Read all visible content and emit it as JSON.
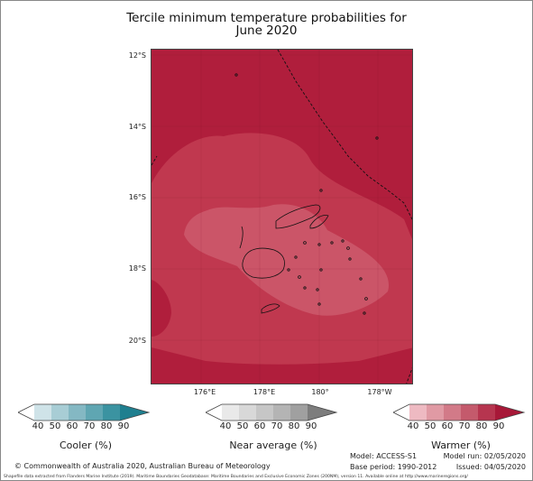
{
  "title": {
    "line1": "Tercile minimum temperature probabilities for",
    "line2": "June 2020"
  },
  "map": {
    "lat_labels": [
      "12°S",
      "14°S",
      "16°S",
      "18°S",
      "20°S"
    ],
    "lon_labels": [
      "176°E",
      "178°E",
      "180°",
      "178°W"
    ],
    "colors": {
      "warmer_90": "#b01e3c",
      "warmer_80": "#c0384f",
      "warmer_70": "#cb5568",
      "coastline": "#111111"
    }
  },
  "legends": {
    "cooler": {
      "title": "Cooler (%)",
      "ticks": [
        "40",
        "50",
        "60",
        "70",
        "80",
        "90"
      ],
      "colors": [
        "#ffffff",
        "#cfe3e8",
        "#a8cdd5",
        "#84b8c3",
        "#5fa6b2",
        "#3b93a1",
        "#1f7f8f"
      ]
    },
    "near": {
      "title": "Near average (%)",
      "ticks": [
        "40",
        "50",
        "60",
        "70",
        "80",
        "90"
      ],
      "colors": [
        "#ffffff",
        "#e9e9e9",
        "#d8d8d8",
        "#c6c6c6",
        "#b4b4b4",
        "#a0a0a0",
        "#7d7d7d"
      ]
    },
    "warmer": {
      "title": "Warmer (%)",
      "ticks": [
        "40",
        "50",
        "60",
        "70",
        "80",
        "90"
      ],
      "colors": [
        "#ffffff",
        "#eebac2",
        "#e09aa4",
        "#d27a88",
        "#c45a6c",
        "#b6354f",
        "#a71838"
      ]
    }
  },
  "info": {
    "model": "Model: ACCESS-S1",
    "model_run": "Model run: 02/05/2020",
    "base_period": "Base period: 1990-2012",
    "issued": "Issued: 04/05/2020"
  },
  "copyright": "© Commonwealth of Australia 2020, Australian Bureau of Meteorology",
  "shapefile": "Shapefile data extracted from Flanders Marine Institute (2019). Maritime Boundaries Geodatabase: Maritime Boundaries and Exclusive Economic Zones (200NM), version 11. Available online at http://www.marineregions.org/"
}
